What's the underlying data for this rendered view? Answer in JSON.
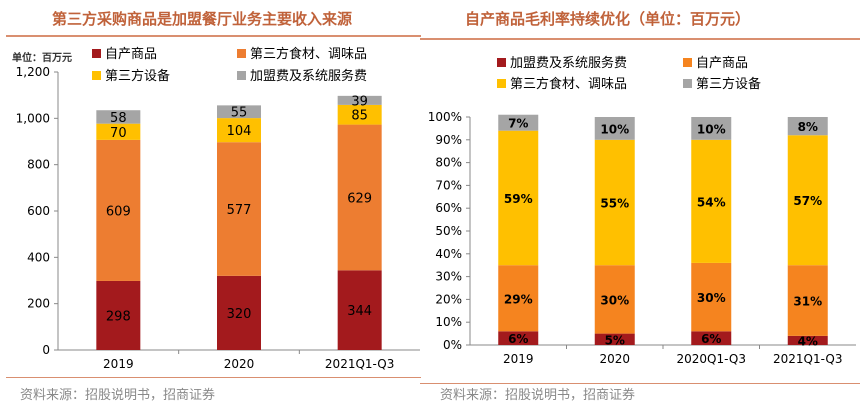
{
  "chart_data": [
    {
      "type": "bar",
      "stacked": true,
      "title": "第三方采购商品是加盟餐厅业务主要收入来源",
      "unit_label": "单位：百万元",
      "categories": [
        "2019",
        "2020",
        "2021Q1-Q3"
      ],
      "ylim": [
        0,
        1200
      ],
      "yticks": [
        "0",
        "200",
        "400",
        "600",
        "800",
        "1,000",
        "1,200"
      ],
      "legend_position": "top",
      "series": [
        {
          "name": "自产商品",
          "color": "#a31a1d",
          "values": [
            298,
            320,
            344
          ]
        },
        {
          "name": "第三方食材、调味品",
          "color": "#ed7d31",
          "values": [
            609,
            577,
            629
          ]
        },
        {
          "name": "第三方设备",
          "color": "#ffc000",
          "values": [
            70,
            104,
            85
          ]
        },
        {
          "name": "加盟费及系统服务费",
          "color": "#a5a5a5",
          "values": [
            58,
            55,
            39
          ]
        }
      ],
      "source": "资料来源：招股说明书，招商证券"
    },
    {
      "type": "bar",
      "stacked": true,
      "title": "自产商品毛利率持续优化（单位：百万元）",
      "categories": [
        "2019",
        "2020",
        "2020Q1-Q3",
        "2021Q1-Q3"
      ],
      "ylim": [
        0,
        100
      ],
      "yticks": [
        "0%",
        "10%",
        "20%",
        "30%",
        "40%",
        "50%",
        "60%",
        "70%",
        "80%",
        "90%",
        "100%"
      ],
      "legend_position": "top",
      "series": [
        {
          "name": "加盟费及系统服务费",
          "color": "#a31a1d",
          "values": [
            6,
            5,
            6,
            4
          ],
          "labels": [
            "6%",
            "5%",
            "6%",
            "4%"
          ]
        },
        {
          "name": "自产商品",
          "color": "#f5841f",
          "values": [
            29,
            30,
            30,
            31
          ],
          "labels": [
            "29%",
            "30%",
            "30%",
            "31%"
          ]
        },
        {
          "name": "第三方食材、调味品",
          "color": "#ffc000",
          "values": [
            59,
            55,
            54,
            57
          ],
          "labels": [
            "59%",
            "55%",
            "54%",
            "57%"
          ]
        },
        {
          "name": "第三方设备",
          "color": "#a5a5a5",
          "values": [
            7,
            10,
            10,
            8
          ],
          "labels": [
            "7%",
            "10%",
            "10%",
            "8%"
          ]
        }
      ],
      "source": "资料来源：招股说明书，招商证券"
    }
  ]
}
